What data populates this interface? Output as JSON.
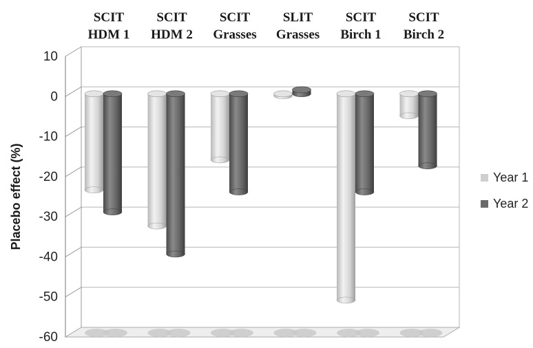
{
  "chart_data": {
    "type": "bar",
    "categories": [
      [
        "SCIT",
        "HDM 1"
      ],
      [
        "SCIT",
        "HDM 2"
      ],
      [
        "SCIT",
        "Grasses"
      ],
      [
        "SLIT",
        "Grasses"
      ],
      [
        "SCIT",
        "Birch 1"
      ],
      [
        "SCIT",
        "Birch 2"
      ]
    ],
    "series": [
      {
        "name": "Year 1",
        "color": "#cfcfcf",
        "values": [
          -24,
          -33,
          -16.5,
          -0.5,
          -51.5,
          -5.5
        ]
      },
      {
        "name": "Year 2",
        "color": "#6a6a6a",
        "values": [
          -29.5,
          -40,
          -24.5,
          1,
          -24.5,
          -18
        ]
      }
    ],
    "ylabel": "Placebo effect (%)",
    "ylim": [
      -60,
      10
    ],
    "yticks": [
      10,
      0,
      -10,
      -20,
      -30,
      -40,
      -50,
      -60
    ],
    "ytick_labels": [
      "10",
      "0",
      "-10",
      "-20",
      "-30",
      "-40",
      "-50",
      "-60"
    ],
    "grid": true,
    "style": "3d-cylinder",
    "legend_position": "right"
  }
}
